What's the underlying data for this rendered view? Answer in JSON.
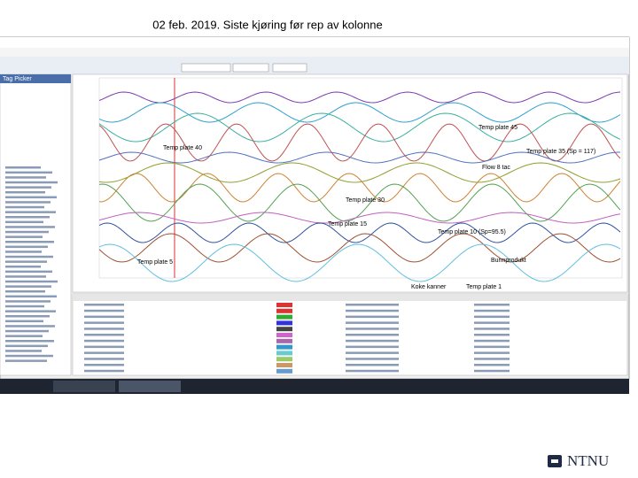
{
  "title": "02 feb. 2019. Siste kjøring før rep av kolonne",
  "window": {
    "panel_title": "Tag Picker"
  },
  "annotations": [
    "Temp plate 45",
    "Temp plate 40",
    "Temp plate 35 (Sp = 117)",
    "Flow 8 tac",
    "Temp plate 30",
    "Temp plate 15",
    "Temp plate 10 (Sp=95.5)",
    "Temp plate 5",
    "Bunnprodukt",
    "Koke kanner",
    "Temp plate 1"
  ],
  "logo": "NTNU"
}
